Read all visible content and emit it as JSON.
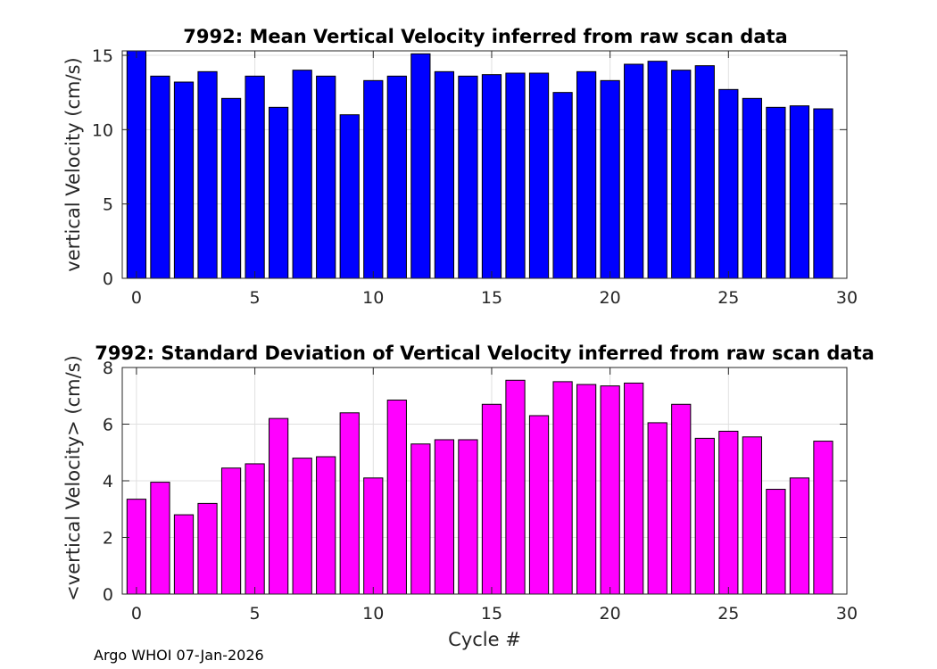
{
  "chart_data": [
    {
      "type": "bar",
      "title": "7992: Mean Vertical Velocity inferred from raw scan data",
      "xlabel": "",
      "ylabel": "vertical Velocity (cm/s)",
      "xlim": [
        -0.6,
        30
      ],
      "ylim": [
        0,
        15.3
      ],
      "xticks": [
        0,
        5,
        10,
        15,
        20,
        25,
        30
      ],
      "yticks": [
        0,
        5,
        10,
        15
      ],
      "grid": true,
      "color": "#0000ff",
      "x": [
        0,
        1,
        2,
        3,
        4,
        5,
        6,
        7,
        8,
        9,
        10,
        11,
        12,
        13,
        14,
        15,
        16,
        17,
        18,
        19,
        20,
        21,
        22,
        23,
        24,
        25,
        26,
        27,
        28,
        29
      ],
      "values": [
        15.3,
        13.6,
        13.2,
        13.9,
        12.1,
        13.6,
        11.5,
        14.0,
        13.6,
        11.0,
        13.3,
        13.6,
        15.1,
        13.9,
        13.6,
        13.7,
        13.8,
        13.8,
        12.5,
        13.9,
        13.3,
        14.4,
        14.6,
        14.0,
        14.3,
        12.7,
        12.1,
        11.5,
        11.6,
        11.4
      ]
    },
    {
      "type": "bar",
      "title": "7992: Standard Deviation of Vertical Velocity inferred from raw scan data",
      "xlabel": "Cycle #",
      "ylabel": "<vertical Velocity> (cm/s)",
      "xlim": [
        -0.6,
        30
      ],
      "ylim": [
        0,
        8
      ],
      "xticks": [
        0,
        5,
        10,
        15,
        20,
        25,
        30
      ],
      "yticks": [
        0,
        2,
        4,
        6,
        8
      ],
      "grid": true,
      "color": "#ff00ff",
      "x": [
        0,
        1,
        2,
        3,
        4,
        5,
        6,
        7,
        8,
        9,
        10,
        11,
        12,
        13,
        14,
        15,
        16,
        17,
        18,
        19,
        20,
        21,
        22,
        23,
        24,
        25,
        26,
        27,
        28,
        29
      ],
      "values": [
        3.35,
        3.95,
        2.8,
        3.2,
        4.45,
        4.6,
        6.2,
        4.8,
        4.85,
        6.4,
        4.1,
        6.85,
        5.3,
        5.45,
        5.45,
        6.7,
        7.55,
        6.3,
        7.5,
        7.4,
        7.35,
        7.45,
        6.05,
        6.7,
        5.5,
        5.75,
        5.55,
        3.7,
        4.1,
        5.4
      ]
    }
  ],
  "footer": "Argo WHOI 07-Jan-2026"
}
